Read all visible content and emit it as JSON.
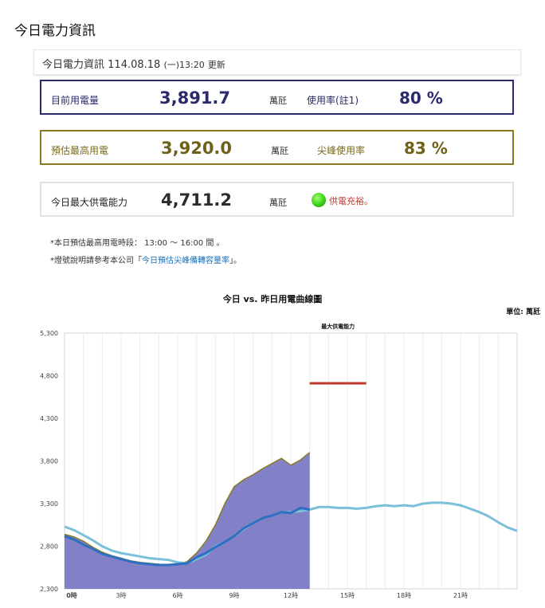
{
  "page_title": "今日電力資訊",
  "header": {
    "title": "今日電力資訊",
    "datetime": "114.08.18",
    "weekday_time": "(一)13:20",
    "updated_label": "更新"
  },
  "cards": {
    "current": {
      "label": "目前用電量",
      "value": "3,891.7",
      "unit": "萬瓩",
      "rate_label": "使用率(註1)",
      "rate_value": "80 %"
    },
    "peak": {
      "label": "預估最高用電",
      "value": "3,920.0",
      "unit": "萬瓩",
      "rate_label": "尖峰使用率",
      "rate_value": "83 %"
    },
    "supply": {
      "label": "今日最大供電能力",
      "value": "4,711.2",
      "unit": "萬瓩",
      "status_text": "供電充裕。",
      "status_color": "#3ccf1c"
    }
  },
  "notes": {
    "note1": "*本日預估最高用電時段： 13:00 ～ 16:00 間 。",
    "note2_prefix": "*燈號說明請參考本公司「",
    "note2_link": "今日預估尖峰備轉容量率",
    "note2_suffix": "」。"
  },
  "chart_data": {
    "type": "area",
    "title": "今日 vs. 昨日用電曲線圖",
    "unit_label": "單位: 萬瓩",
    "ylim": [
      2300,
      5300
    ],
    "yticks": [
      "2,300",
      "2,800",
      "3,300",
      "3,800",
      "4,300",
      "4,800",
      "5,300"
    ],
    "ytick_values": [
      2300,
      2800,
      3300,
      3800,
      4300,
      4800,
      5300
    ],
    "xlim": [
      0,
      24
    ],
    "xticks": [
      "0時",
      "3時",
      "6時",
      "9時",
      "12時",
      "15時",
      "18時",
      "21時"
    ],
    "xtick_values": [
      0,
      3,
      6,
      9,
      12,
      15,
      18,
      21
    ],
    "grid": true,
    "colors": {
      "today_fill": "#7b79c4",
      "today_edge": "#8b7a22",
      "today_line": "#2d6fc0",
      "yesterday_line": "#7ac0d8",
      "supply_line": "#c0392b"
    },
    "supply_annotation": {
      "label": "最大供電能力",
      "value": 4711.2,
      "x_start": 13,
      "x_end": 16
    },
    "series": [
      {
        "key": "today_load",
        "x": [
          0,
          0.5,
          1,
          1.5,
          2,
          2.5,
          3,
          3.5,
          4,
          4.5,
          5,
          5.5,
          6,
          6.5,
          7,
          7.5,
          8,
          8.5,
          9,
          9.5,
          10,
          10.5,
          11,
          11.5,
          12,
          12.5,
          13
        ],
        "values": [
          2940,
          2910,
          2860,
          2790,
          2730,
          2690,
          2660,
          2630,
          2610,
          2600,
          2590,
          2580,
          2590,
          2620,
          2720,
          2860,
          3050,
          3300,
          3500,
          3580,
          3640,
          3710,
          3770,
          3830,
          3750,
          3810,
          3900
        ]
      },
      {
        "key": "today_supply",
        "x": [
          0,
          0.5,
          1,
          1.5,
          2,
          2.5,
          3,
          3.5,
          4,
          4.5,
          5,
          5.5,
          6,
          6.5,
          7,
          7.5,
          8,
          8.5,
          9,
          9.5,
          10,
          10.5,
          11,
          11.5,
          12,
          12.5,
          13
        ],
        "values": [
          2920,
          2880,
          2820,
          2770,
          2710,
          2680,
          2650,
          2620,
          2600,
          2590,
          2580,
          2580,
          2590,
          2600,
          2670,
          2720,
          2790,
          2850,
          2920,
          3010,
          3070,
          3130,
          3160,
          3200,
          3190,
          3250,
          3230
        ]
      },
      {
        "key": "yesterday",
        "x": [
          0,
          0.5,
          1,
          1.5,
          2,
          2.5,
          3,
          3.5,
          4,
          4.5,
          5,
          5.5,
          6,
          6.5,
          7,
          7.5,
          8,
          8.5,
          9,
          9.5,
          10,
          10.5,
          11,
          11.5,
          12,
          12.5,
          13,
          13.5,
          14,
          14.5,
          15,
          15.5,
          16,
          16.5,
          17,
          17.5,
          18,
          18.5,
          19,
          19.5,
          20,
          20.5,
          21,
          21.5,
          22,
          22.5,
          23,
          23.5,
          24
        ],
        "values": [
          3030,
          2990,
          2930,
          2870,
          2800,
          2750,
          2720,
          2700,
          2680,
          2660,
          2650,
          2640,
          2610,
          2600,
          2650,
          2700,
          2800,
          2850,
          2920,
          3000,
          3070,
          3130,
          3160,
          3200,
          3200,
          3210,
          3230,
          3260,
          3260,
          3250,
          3250,
          3240,
          3250,
          3270,
          3280,
          3270,
          3280,
          3270,
          3300,
          3310,
          3310,
          3300,
          3280,
          3240,
          3200,
          3150,
          3080,
          3020,
          2980
        ]
      }
    ]
  }
}
